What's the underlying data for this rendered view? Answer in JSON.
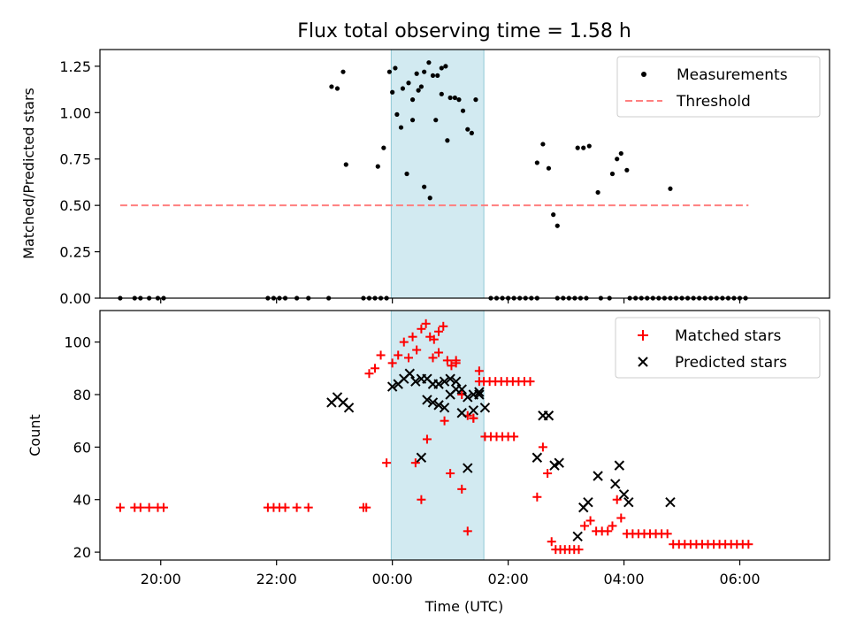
{
  "chart_data": [
    {
      "type": "scatter",
      "title": "Flux total observing time = 1.58 h",
      "xlabel": "",
      "ylabel": "Matched/Predicted stars",
      "xlim_hours": [
        -5.05,
        7.55
      ],
      "ylim": [
        0,
        1.34
      ],
      "yticks": [
        "0.00",
        "0.25",
        "0.50",
        "0.75",
        "1.00",
        "1.25"
      ],
      "ytick_values": [
        0,
        0.25,
        0.5,
        0.75,
        1.0,
        1.25
      ],
      "shaded_interval_hours": [
        -0.02,
        1.58
      ],
      "shade_color": "#add8e6",
      "legend_position": "upper right",
      "series": [
        {
          "name": "Measurements",
          "kind": "dot",
          "color": "#000000",
          "points": [
            [
              -4.7,
              0
            ],
            [
              -4.45,
              0
            ],
            [
              -4.35,
              0
            ],
            [
              -4.2,
              0
            ],
            [
              -4.05,
              0
            ],
            [
              -3.95,
              0
            ],
            [
              -2.15,
              0
            ],
            [
              -2.05,
              0
            ],
            [
              -1.95,
              0
            ],
            [
              -1.85,
              0
            ],
            [
              -1.65,
              0
            ],
            [
              -1.45,
              0
            ],
            [
              -1.1,
              0
            ],
            [
              -0.5,
              0
            ],
            [
              -0.4,
              0
            ],
            [
              -0.3,
              0
            ],
            [
              -0.2,
              0
            ],
            [
              -0.1,
              0
            ],
            [
              1.7,
              0
            ],
            [
              1.8,
              0
            ],
            [
              1.9,
              0
            ],
            [
              2.0,
              0
            ],
            [
              2.1,
              0
            ],
            [
              2.2,
              0
            ],
            [
              2.3,
              0
            ],
            [
              2.4,
              0
            ],
            [
              2.5,
              0
            ],
            [
              2.85,
              0
            ],
            [
              2.95,
              0
            ],
            [
              3.05,
              0
            ],
            [
              3.15,
              0
            ],
            [
              3.25,
              0
            ],
            [
              3.35,
              0
            ],
            [
              3.6,
              0
            ],
            [
              3.75,
              0
            ],
            [
              4.1,
              0
            ],
            [
              4.2,
              0
            ],
            [
              4.3,
              0
            ],
            [
              4.4,
              0
            ],
            [
              4.5,
              0
            ],
            [
              4.6,
              0
            ],
            [
              4.7,
              0
            ],
            [
              4.8,
              0
            ],
            [
              4.9,
              0
            ],
            [
              5.0,
              0
            ],
            [
              5.1,
              0
            ],
            [
              5.2,
              0
            ],
            [
              5.3,
              0
            ],
            [
              5.4,
              0
            ],
            [
              5.5,
              0
            ],
            [
              5.6,
              0
            ],
            [
              5.7,
              0
            ],
            [
              5.8,
              0
            ],
            [
              5.9,
              0
            ],
            [
              6.0,
              0
            ],
            [
              6.1,
              0
            ],
            [
              -1.05,
              1.14
            ],
            [
              -0.95,
              1.13
            ],
            [
              -0.85,
              1.22
            ],
            [
              -0.8,
              0.72
            ],
            [
              -0.25,
              0.71
            ],
            [
              -0.15,
              0.81
            ],
            [
              -0.05,
              1.22
            ],
            [
              0.05,
              1.24
            ],
            [
              0.15,
              0.92
            ],
            [
              0.25,
              0.67
            ],
            [
              0.35,
              0.96
            ],
            [
              0.45,
              1.12
            ],
            [
              0.55,
              0.6
            ],
            [
              0.65,
              0.54
            ],
            [
              0.75,
              0.96
            ],
            [
              0.85,
              1.1
            ],
            [
              0.95,
              0.85
            ],
            [
              0.0,
              1.11
            ],
            [
              0.08,
              0.99
            ],
            [
              0.18,
              1.13
            ],
            [
              0.28,
              1.16
            ],
            [
              0.35,
              1.07
            ],
            [
              0.42,
              1.21
            ],
            [
              0.5,
              1.14
            ],
            [
              0.55,
              1.22
            ],
            [
              0.63,
              1.27
            ],
            [
              0.7,
              1.2
            ],
            [
              0.78,
              1.2
            ],
            [
              0.85,
              1.24
            ],
            [
              0.92,
              1.25
            ],
            [
              1.0,
              1.08
            ],
            [
              1.08,
              1.08
            ],
            [
              1.15,
              1.07
            ],
            [
              1.22,
              1.01
            ],
            [
              1.3,
              0.91
            ],
            [
              1.37,
              0.89
            ],
            [
              1.44,
              1.07
            ],
            [
              2.5,
              0.73
            ],
            [
              2.6,
              0.83
            ],
            [
              2.7,
              0.7
            ],
            [
              2.78,
              0.45
            ],
            [
              2.85,
              0.39
            ],
            [
              3.2,
              0.81
            ],
            [
              3.3,
              0.81
            ],
            [
              3.4,
              0.82
            ],
            [
              3.55,
              0.57
            ],
            [
              3.8,
              0.67
            ],
            [
              3.88,
              0.75
            ],
            [
              3.95,
              0.78
            ],
            [
              4.05,
              0.69
            ],
            [
              4.8,
              0.59
            ]
          ]
        },
        {
          "name": "Threshold",
          "kind": "dashed-line",
          "color": "#ff7f7f",
          "points": [
            [
              -4.7,
              0.5
            ],
            [
              6.15,
              0.5
            ]
          ]
        }
      ]
    },
    {
      "type": "scatter",
      "title": "",
      "xlabel": "Time (UTC)",
      "ylabel": "Count",
      "xlim_hours": [
        -5.05,
        7.55
      ],
      "ylim": [
        17,
        112
      ],
      "yticks": [
        "20",
        "40",
        "60",
        "80",
        "100"
      ],
      "ytick_values": [
        20,
        40,
        60,
        80,
        100
      ],
      "xticks": [
        "20:00",
        "22:00",
        "00:00",
        "02:00",
        "04:00",
        "06:00"
      ],
      "xtick_hours": [
        -4,
        -2,
        0,
        2,
        4,
        6
      ],
      "shaded_interval_hours": [
        -0.02,
        1.58
      ],
      "shade_color": "#add8e6",
      "legend_position": "upper right",
      "series": [
        {
          "name": "Matched stars",
          "kind": "plus",
          "color": "#ff0000",
          "points": [
            [
              -4.7,
              37
            ],
            [
              -4.45,
              37
            ],
            [
              -4.35,
              37
            ],
            [
              -4.2,
              37
            ],
            [
              -4.05,
              37
            ],
            [
              -3.95,
              37
            ],
            [
              -2.15,
              37
            ],
            [
              -2.05,
              37
            ],
            [
              -1.95,
              37
            ],
            [
              -1.85,
              37
            ],
            [
              -1.65,
              37
            ],
            [
              -1.45,
              37
            ],
            [
              -0.5,
              37
            ],
            [
              -0.45,
              37
            ],
            [
              -0.4,
              88
            ],
            [
              -0.3,
              90
            ],
            [
              -0.2,
              95
            ],
            [
              -0.1,
              54
            ],
            [
              0.4,
              54
            ],
            [
              0.5,
              40
            ],
            [
              0.6,
              63
            ],
            [
              0.7,
              94
            ],
            [
              0.8,
              96
            ],
            [
              0.9,
              70
            ],
            [
              1.0,
              50
            ],
            [
              1.1,
              92
            ],
            [
              1.2,
              44
            ],
            [
              1.3,
              28
            ],
            [
              1.4,
              71
            ],
            [
              1.5,
              89
            ],
            [
              1.6,
              64
            ],
            [
              1.7,
              64
            ],
            [
              1.8,
              64
            ],
            [
              1.9,
              64
            ],
            [
              2.0,
              64
            ],
            [
              2.1,
              64
            ],
            [
              0.0,
              92
            ],
            [
              0.1,
              95
            ],
            [
              0.2,
              100
            ],
            [
              0.28,
              94
            ],
            [
              0.35,
              102
            ],
            [
              0.42,
              97
            ],
            [
              0.5,
              105
            ],
            [
              0.58,
              107
            ],
            [
              0.65,
              102
            ],
            [
              0.72,
              101
            ],
            [
              0.8,
              104
            ],
            [
              0.88,
              106
            ],
            [
              0.95,
              93
            ],
            [
              1.02,
              91
            ],
            [
              1.1,
              93
            ],
            [
              1.2,
              80
            ],
            [
              1.3,
              72
            ],
            [
              1.4,
              71
            ],
            [
              1.5,
              85
            ],
            [
              1.58,
              85
            ],
            [
              1.68,
              85
            ],
            [
              1.78,
              85
            ],
            [
              1.88,
              85
            ],
            [
              1.98,
              85
            ],
            [
              2.08,
              85
            ],
            [
              2.18,
              85
            ],
            [
              2.28,
              85
            ],
            [
              2.38,
              85
            ],
            [
              2.5,
              41
            ],
            [
              2.6,
              60
            ],
            [
              2.68,
              50
            ],
            [
              2.75,
              24
            ],
            [
              2.82,
              21
            ],
            [
              2.9,
              21
            ],
            [
              2.98,
              21
            ],
            [
              3.06,
              21
            ],
            [
              3.14,
              21
            ],
            [
              3.22,
              21
            ],
            [
              3.32,
              30
            ],
            [
              3.42,
              32
            ],
            [
              3.52,
              28
            ],
            [
              3.62,
              28
            ],
            [
              3.72,
              28
            ],
            [
              3.8,
              30
            ],
            [
              3.88,
              40
            ],
            [
              3.95,
              33
            ],
            [
              4.05,
              27
            ],
            [
              4.15,
              27
            ],
            [
              4.25,
              27
            ],
            [
              4.35,
              27
            ],
            [
              4.45,
              27
            ],
            [
              4.55,
              27
            ],
            [
              4.65,
              27
            ],
            [
              4.75,
              27
            ],
            [
              4.85,
              23
            ],
            [
              4.95,
              23
            ],
            [
              5.05,
              23
            ],
            [
              5.15,
              23
            ],
            [
              5.25,
              23
            ],
            [
              5.35,
              23
            ],
            [
              5.45,
              23
            ],
            [
              5.55,
              23
            ],
            [
              5.65,
              23
            ],
            [
              5.75,
              23
            ],
            [
              5.85,
              23
            ],
            [
              5.95,
              23
            ],
            [
              6.05,
              23
            ],
            [
              6.15,
              23
            ]
          ]
        },
        {
          "name": "Predicted stars",
          "kind": "cross",
          "color": "#000000",
          "points": [
            [
              -1.05,
              77
            ],
            [
              -0.95,
              79
            ],
            [
              -0.85,
              77
            ],
            [
              -0.75,
              75
            ],
            [
              0.5,
              56
            ],
            [
              0.6,
              78
            ],
            [
              0.7,
              77
            ],
            [
              0.8,
              76
            ],
            [
              0.9,
              75
            ],
            [
              1.0,
              80
            ],
            [
              1.1,
              82
            ],
            [
              1.2,
              73
            ],
            [
              1.3,
              52
            ],
            [
              1.4,
              74
            ],
            [
              1.5,
              81
            ],
            [
              1.6,
              75
            ],
            [
              0.0,
              83
            ],
            [
              0.1,
              84
            ],
            [
              0.2,
              86
            ],
            [
              0.3,
              88
            ],
            [
              0.4,
              85
            ],
            [
              0.5,
              86
            ],
            [
              0.6,
              86
            ],
            [
              0.7,
              84
            ],
            [
              0.8,
              84
            ],
            [
              0.9,
              85
            ],
            [
              1.0,
              86
            ],
            [
              1.1,
              85
            ],
            [
              1.2,
              82
            ],
            [
              1.3,
              79
            ],
            [
              1.4,
              80
            ],
            [
              1.5,
              80
            ],
            [
              2.5,
              56
            ],
            [
              2.6,
              72
            ],
            [
              2.7,
              72
            ],
            [
              2.8,
              53
            ],
            [
              2.88,
              54
            ],
            [
              3.2,
              26
            ],
            [
              3.3,
              37
            ],
            [
              3.38,
              39
            ],
            [
              3.55,
              49
            ],
            [
              3.85,
              46
            ],
            [
              3.92,
              53
            ],
            [
              4.0,
              42
            ],
            [
              4.08,
              39
            ],
            [
              4.8,
              39
            ]
          ]
        }
      ]
    }
  ]
}
